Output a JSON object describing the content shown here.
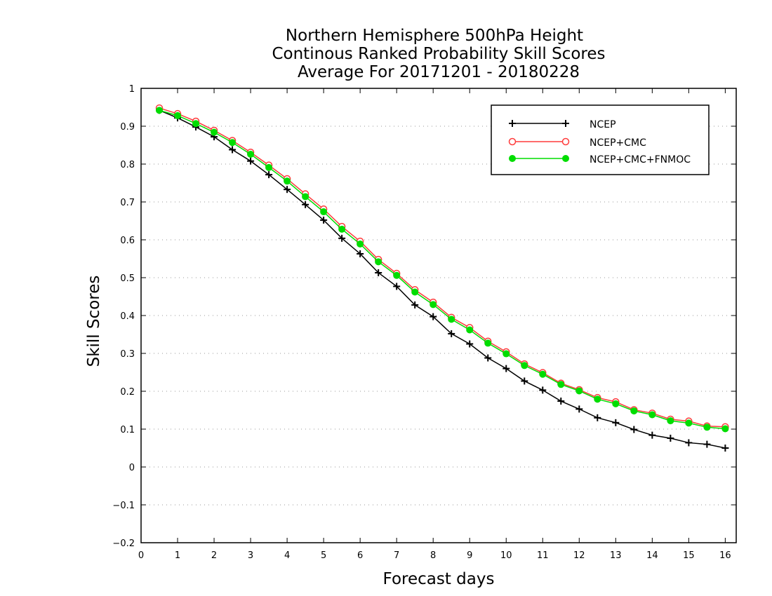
{
  "chart_data": {
    "type": "line",
    "title_lines": [
      "Northern Hemisphere 500hPa Height",
      "Continous Ranked Probability Skill Scores",
      "Average For 20171201 - 20180228"
    ],
    "xlabel": "Forecast days",
    "ylabel": "Skill Scores",
    "xlim": [
      0,
      16.3
    ],
    "ylim": [
      -0.2,
      1
    ],
    "xticks": [
      "0",
      "1",
      "2",
      "3",
      "4",
      "5",
      "6",
      "7",
      "8",
      "9",
      "10",
      "11",
      "12",
      "13",
      "14",
      "15",
      "16"
    ],
    "yticks": [
      "−0.2",
      "−0.1",
      "0",
      "0.1",
      "0.2",
      "0.3",
      "0.4",
      "0.5",
      "0.6",
      "0.7",
      "0.8",
      "0.9",
      "1"
    ],
    "grid": "horizontal dotted",
    "legend_position": "top-right",
    "x": [
      0.5,
      1,
      1.5,
      2,
      2.5,
      3,
      3.5,
      4,
      4.5,
      5,
      5.5,
      6,
      6.5,
      7,
      7.5,
      8,
      8.5,
      9,
      9.5,
      10,
      10.5,
      11,
      11.5,
      12,
      12.5,
      13,
      13.5,
      14,
      14.5,
      15,
      15.5,
      16
    ],
    "series": [
      {
        "name": "NCEP",
        "color": "#000000",
        "marker": "plus",
        "values": [
          0.942,
          0.922,
          0.898,
          0.872,
          0.838,
          0.808,
          0.772,
          0.733,
          0.693,
          0.652,
          0.604,
          0.563,
          0.513,
          0.477,
          0.428,
          0.397,
          0.352,
          0.325,
          0.288,
          0.26,
          0.227,
          0.203,
          0.174,
          0.153,
          0.13,
          0.117,
          0.099,
          0.084,
          0.076,
          0.064,
          0.06,
          0.05
        ]
      },
      {
        "name": "NCEP+CMC",
        "color": "#ff3b3b",
        "marker": "open-circle",
        "values": [
          0.948,
          0.933,
          0.913,
          0.889,
          0.862,
          0.831,
          0.797,
          0.761,
          0.721,
          0.681,
          0.635,
          0.596,
          0.548,
          0.511,
          0.468,
          0.435,
          0.395,
          0.368,
          0.332,
          0.304,
          0.272,
          0.249,
          0.221,
          0.204,
          0.183,
          0.172,
          0.151,
          0.142,
          0.126,
          0.121,
          0.108,
          0.106
        ]
      },
      {
        "name": "NCEP+CMC+FNMOC",
        "color": "#00dd00",
        "marker": "filled-circle",
        "values": [
          0.942,
          0.928,
          0.907,
          0.884,
          0.857,
          0.826,
          0.791,
          0.755,
          0.714,
          0.674,
          0.628,
          0.589,
          0.542,
          0.506,
          0.462,
          0.429,
          0.39,
          0.362,
          0.327,
          0.299,
          0.268,
          0.245,
          0.218,
          0.201,
          0.179,
          0.167,
          0.148,
          0.138,
          0.122,
          0.116,
          0.105,
          0.101
        ]
      }
    ]
  }
}
